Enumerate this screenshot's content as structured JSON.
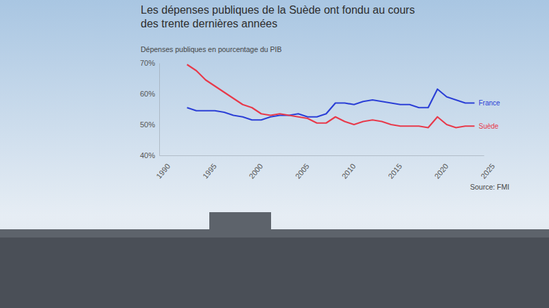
{
  "chart_data": {
    "type": "line",
    "title": "Les dépenses publiques de la Suède ont fondu au cours des trente dernières années",
    "subtitle": "Dépenses publiques en pourcentage du PIB",
    "source": "Source: FMI",
    "x": [
      1993,
      1994,
      1995,
      1996,
      1997,
      1998,
      1999,
      2000,
      2001,
      2002,
      2003,
      2004,
      2005,
      2006,
      2007,
      2008,
      2009,
      2010,
      2011,
      2012,
      2013,
      2014,
      2015,
      2016,
      2017,
      2018,
      2019,
      2020,
      2021,
      2022,
      2023,
      2024
    ],
    "series": [
      {
        "name": "France",
        "color": "#2b3fd6",
        "values": [
          55.5,
          54.5,
          54.5,
          54.5,
          54,
          53,
          52.5,
          51.5,
          51.5,
          52.5,
          53,
          53,
          53.5,
          52.5,
          52.5,
          53.5,
          57,
          57,
          56.5,
          57.5,
          58,
          57.5,
          57,
          56.5,
          56.5,
          55.5,
          55.5,
          61.5,
          59,
          58,
          57,
          57
        ]
      },
      {
        "name": "Suède",
        "color": "#e8394a",
        "values": [
          69.5,
          67.5,
          64.5,
          62.5,
          60.5,
          58.5,
          56.5,
          55.5,
          53.5,
          53,
          53.5,
          53,
          52.5,
          52,
          50.5,
          50.5,
          52.5,
          51,
          50,
          51,
          51.5,
          51,
          50,
          49.5,
          49.5,
          49.5,
          49,
          52.5,
          50,
          49,
          49.5,
          49.5
        ]
      }
    ],
    "xlim": [
      1990,
      2025
    ],
    "xticks": [
      1990,
      1995,
      2000,
      2005,
      2010,
      2015,
      2020,
      2025
    ],
    "ylim": [
      40,
      70
    ],
    "yticks": [
      {
        "value": 40,
        "label": "40%"
      },
      {
        "value": 50,
        "label": "50%"
      },
      {
        "value": 60,
        "label": "60%"
      },
      {
        "value": 70,
        "label": "70%"
      }
    ],
    "grid": false
  }
}
